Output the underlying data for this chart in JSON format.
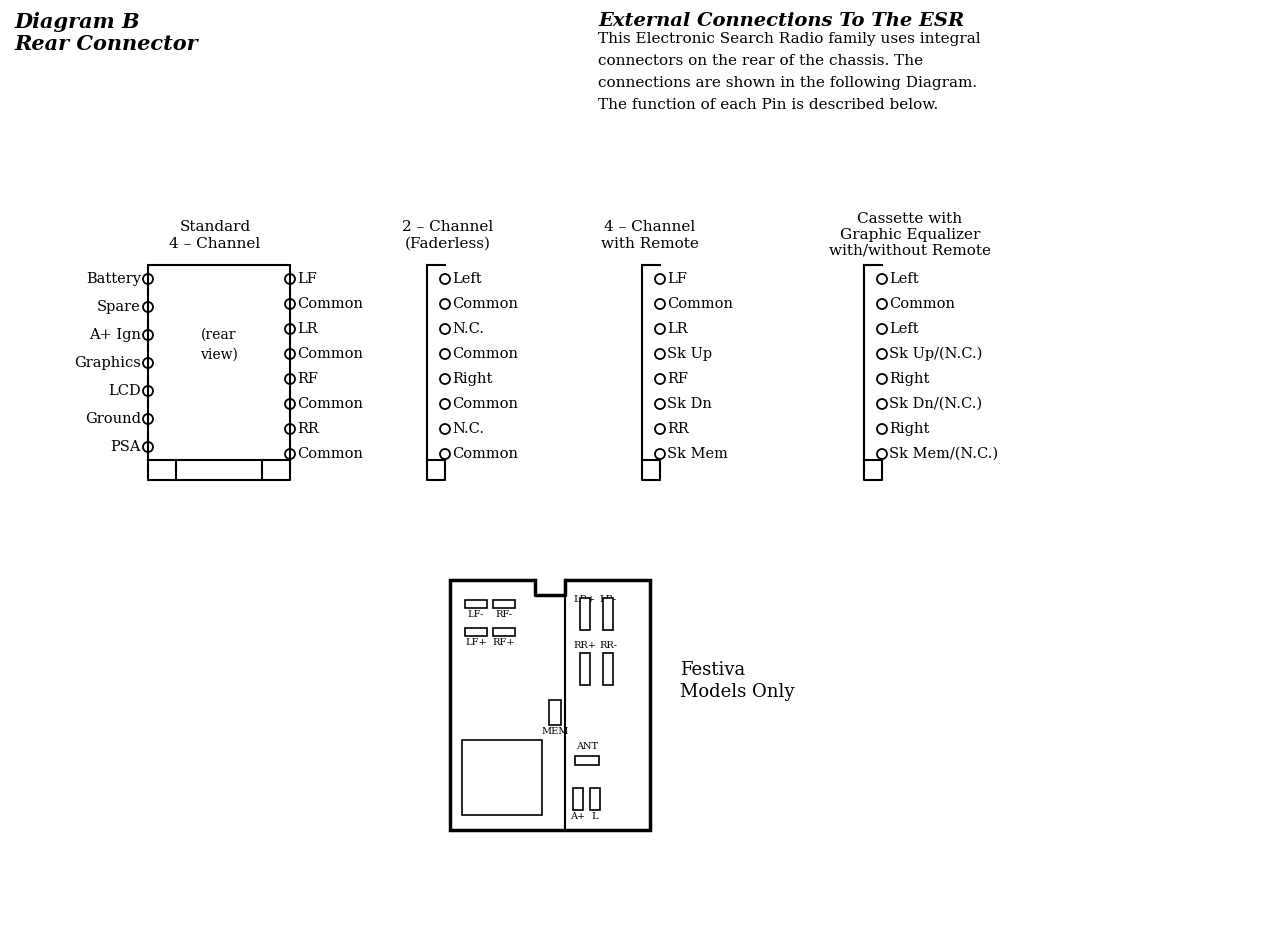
{
  "title_left_line1": "Diagram B",
  "title_left_line2": "Rear Connector",
  "title_right": "External Connections To The ESR",
  "desc_lines": [
    "This Electronic Search Radio family uses integral",
    "connectors on the rear of the chassis. The",
    "connections are shown in the following Diagram.",
    "The function of each Pin is described below."
  ],
  "conn1_title_l1": "Standard",
  "conn1_title_l2": "4 – Channel",
  "conn2_title_l1": "2 – Channel",
  "conn2_title_l2": "(Faderless)",
  "conn3_title_l1": "4 – Channel",
  "conn3_title_l2": "with Remote",
  "conn4_title_l1": "Cassette with",
  "conn4_title_l2": "Graphic Equalizer",
  "conn4_title_l3": "with/without Remote",
  "conn1_left_labels": [
    "Battery",
    "Spare",
    "A+ Ign",
    "Graphics",
    "LCD",
    "Ground",
    "PSA"
  ],
  "conn1_right_labels": [
    "LF",
    "Common",
    "LR",
    "Common",
    "RF",
    "Common",
    "RR",
    "Common"
  ],
  "conn2_right_labels": [
    "Left",
    "Common",
    "N.C.",
    "Common",
    "Right",
    "Common",
    "N.C.",
    "Common"
  ],
  "conn3_right_labels": [
    "LF",
    "Common",
    "LR",
    "Sk Up",
    "RF",
    "Sk Dn",
    "RR",
    "Sk Mem"
  ],
  "conn4_right_labels": [
    "Left",
    "Common",
    "Left",
    "Sk Up/(N.C.)",
    "Right",
    "Sk Dn/(N.C.)",
    "Right",
    "Sk Mem/(N.C.)"
  ],
  "conn1_center": [
    "(rear",
    "view)"
  ],
  "festiva_l1": "Festiva",
  "festiva_l2": "Models Only"
}
